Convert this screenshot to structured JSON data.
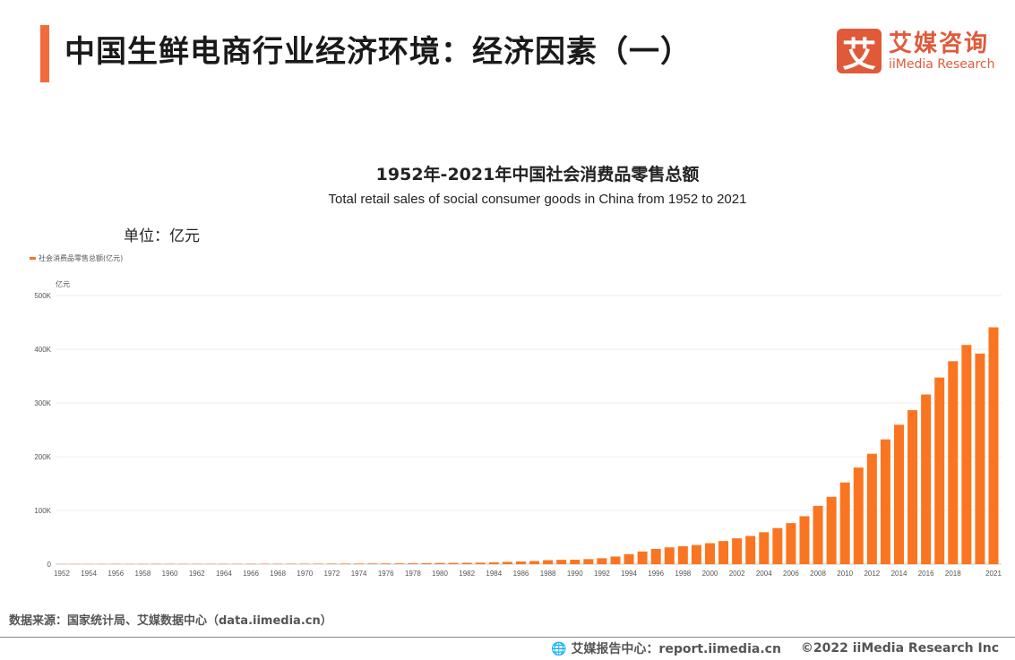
{
  "header": {
    "title": "中国生鲜电商行业经济环境：经济因素（一）",
    "logo_cn": "艾媒咨询",
    "logo_en": "iiMedia Research",
    "logo_mark": "艾"
  },
  "unit_label": "单位：亿元",
  "source": "数据来源：国家统计局、艾媒数据中心（data.iimedia.cn）",
  "footer": {
    "report": "艾媒报告中心：report.iimedia.cn",
    "copyright": "©2022  iiMedia Research  Inc"
  },
  "colors": {
    "bar": "#fa7521",
    "accent": "#f26b3a"
  },
  "chart_data": {
    "type": "bar",
    "title": "1952年-2021年中国社会消费品零售总额",
    "subtitle": "Total retail sales of social consumer goods in China from 1952 to 2021",
    "legend": "社会消费品零售总额(亿元)",
    "ylabel": "亿元",
    "ylim": [
      0,
      500000
    ],
    "yticks": [
      "0",
      "100K",
      "200K",
      "300K",
      "400K",
      "500K"
    ],
    "xtick_labels": [
      "1952",
      "1954",
      "1956",
      "1958",
      "1960",
      "1962",
      "1964",
      "1966",
      "1968",
      "1970",
      "1972",
      "1974",
      "1976",
      "1978",
      "1980",
      "1982",
      "1984",
      "1986",
      "1988",
      "1990",
      "1992",
      "1994",
      "1996",
      "1998",
      "2000",
      "2002",
      "2004",
      "2006",
      "2008",
      "2010",
      "2012",
      "2014",
      "2016",
      "2018",
      "2021"
    ],
    "start_year": 1952,
    "values": [
      277,
      348,
      381,
      392,
      461,
      474,
      548,
      638,
      696,
      607,
      604,
      605,
      638,
      670,
      732,
      770,
      737,
      801,
      858,
      929,
      1023,
      1107,
      1163,
      1271,
      1339,
      1432,
      1559,
      1800,
      2140,
      2350,
      2570,
      2849,
      3376,
      4305,
      4950,
      5820,
      7440,
      8101,
      8300,
      9416,
      10994,
      14270,
      18623,
      23614,
      28360,
      31253,
      33378,
      35648,
      39106,
      43055,
      48136,
      52516,
      59501,
      67177,
      76410,
      89210,
      108488,
      125343,
      152083,
      179804,
      205517,
      232253,
      259487,
      286588,
      315806,
      347327,
      377783,
      408017,
      391981,
      440823
    ]
  }
}
